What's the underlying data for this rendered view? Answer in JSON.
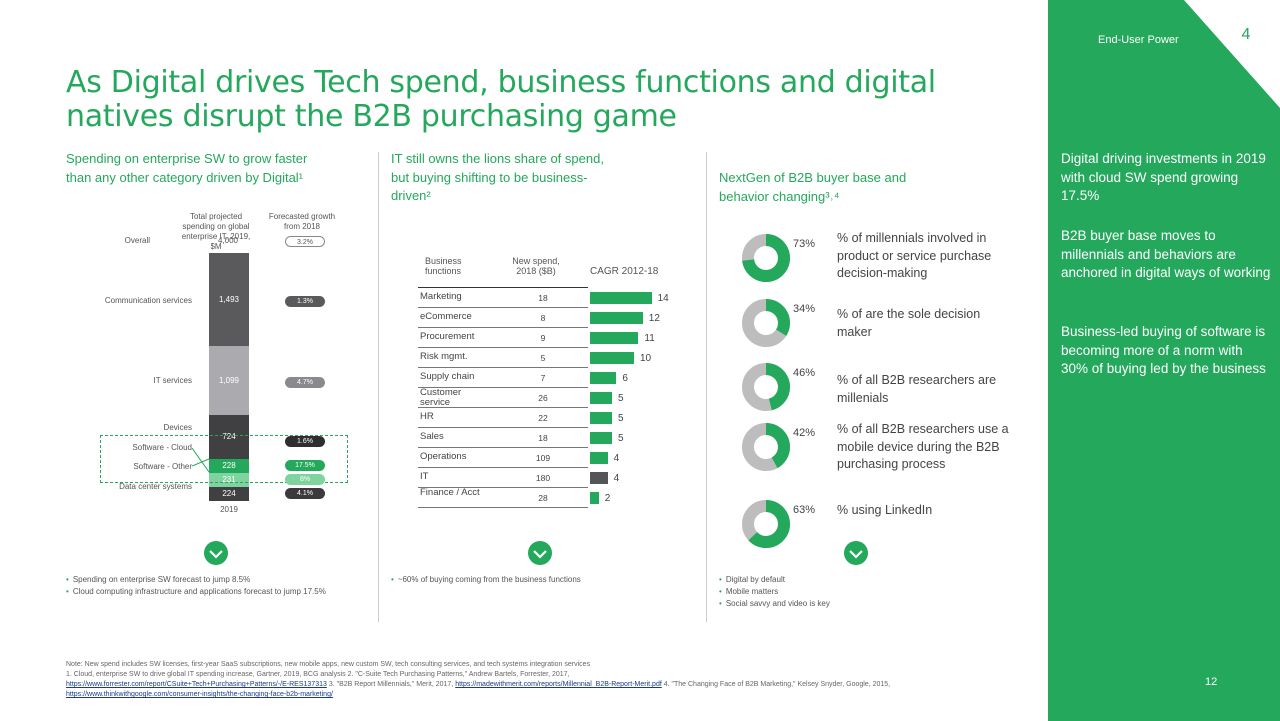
{
  "header": {
    "title": "As Digital drives Tech spend, business functions and digital natives disrupt the B2B purchasing game"
  },
  "sidebar": {
    "section_label": "End-User Power",
    "badge": "4",
    "paragraphs": [
      "Digital driving investments in 2019 with cloud SW spend growing 17.5%",
      "B2B buyer base moves to millennials and behaviors are anchored in digital ways of working",
      "Business-led buying of software is becoming more of a norm with 30% of buying led by the business"
    ],
    "page_number": "12"
  },
  "panel1": {
    "heading": "Spending on enterprise SW to grow faster than any other category driven by Digital¹",
    "col_spend": "Total projected spending on global enterprise IT, 2019, $M",
    "col_growth": "Forecasted growth from 2018",
    "overall_label": "Overall",
    "overall_value": "4,000",
    "overall_growth": "3.2%",
    "segments": [
      {
        "label": "Communication services",
        "value": "1,493",
        "growth": "1.3%"
      },
      {
        "label": "IT services",
        "value": "1,099",
        "growth": "4.7%"
      },
      {
        "label": "Devices",
        "value": "724",
        "growth": "1.6%"
      },
      {
        "label": "Software - Cloud",
        "value": "",
        "growth": ""
      },
      {
        "label": "Software - Other",
        "value": "228",
        "growth": "17.5%"
      },
      {
        "label": "",
        "value": "231",
        "growth": "8%"
      },
      {
        "label": "Data center systems",
        "value": "224",
        "growth": "4.1%"
      }
    ],
    "year": "2019",
    "bullets": [
      "Spending on enterprise SW forecast to jump 8.5%",
      "Cloud computing infrastructure and applications forecast to jump 17.5%"
    ]
  },
  "panel2": {
    "heading": "IT still owns the lions share of spend, but buying shifting to be business-driven²",
    "col_fn": "Business functions",
    "col_spend": "New spend, 2018 ($B)",
    "col_cagr": "CAGR 2012-18",
    "rows": [
      {
        "fn": "Marketing",
        "spend": "18",
        "cagr": "14"
      },
      {
        "fn": "eCommerce",
        "spend": "8",
        "cagr": "12"
      },
      {
        "fn": "Procurement",
        "spend": "9",
        "cagr": "11"
      },
      {
        "fn": "Risk mgmt.",
        "spend": "5",
        "cagr": "10"
      },
      {
        "fn": "Supply chain",
        "spend": "7",
        "cagr": "6"
      },
      {
        "fn": "Customer service",
        "spend": "26",
        "cagr": "5"
      },
      {
        "fn": "HR",
        "spend": "22",
        "cagr": "5"
      },
      {
        "fn": "Sales",
        "spend": "18",
        "cagr": "5"
      },
      {
        "fn": "Operations",
        "spend": "109",
        "cagr": "4"
      },
      {
        "fn": "IT",
        "spend": "180",
        "cagr": "4"
      },
      {
        "fn": "Finance / Acct",
        "spend": "28",
        "cagr": "2"
      }
    ],
    "bullets": [
      "~60% of buying coming from the business functions"
    ]
  },
  "panel3": {
    "heading": "NextGen of B2B buyer base and behavior changing³˒⁴",
    "items": [
      {
        "pct": "73%",
        "value": 0.73,
        "text": "% of millennials involved in product or service purchase decision-making"
      },
      {
        "pct": "34%",
        "value": 0.34,
        "text": "% of are the sole decision maker"
      },
      {
        "pct": "46%",
        "value": 0.46,
        "text": "% of all B2B researchers are millenials"
      },
      {
        "pct": "42%",
        "value": 0.42,
        "text": "% of all B2B researchers use a mobile device during the B2B purchasing process"
      },
      {
        "pct": "63%",
        "value": 0.63,
        "text": "% using LinkedIn"
      }
    ],
    "bullets": [
      "Digital by default",
      "Mobile matters",
      "Social savvy and video is key"
    ]
  },
  "footnotes": {
    "line1": "Note: New spend includes SW licenses, first-year SaaS subscriptions, new mobile apps, new custom SW, tech consulting services, and tech systems integration services",
    "line2": "1. Cloud, enterprise SW to drive global IT spending increase, Gartner, 2019, BCG analysis 2. \"C-Suite Tech Purchasing Patterns,\" Andrew Bartels, Forrester, 2017,",
    "link1": "https://www.forrester.com/report/CSuite+Tech+Purchasing+Patterns/-/E-RES137313",
    "mid": " 3. \"B2B Report Millennials,\" Merit, 2017,",
    "link2": "https://madewithmerit.com/reports/Millennial_B2B-Report-Merit.pdf",
    "mid2": " 4. \"The Changing Face of B2B Marketing,\" Kelsey Snyder, Google, 2015,",
    "link3": "https://www.thinkwithgoogle.com/consumer-insights/the-changing-face-b2b-marketing/"
  },
  "colors": {
    "accent": "#24a85c",
    "dark": "#4d4d4d",
    "mid": "#a9a9ad",
    "light": "#7fd39f"
  }
}
